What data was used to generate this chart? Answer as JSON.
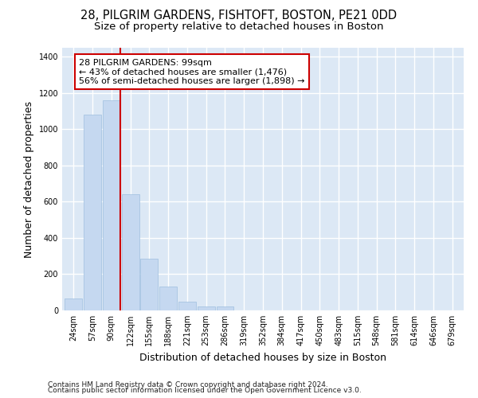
{
  "title_line1": "28, PILGRIM GARDENS, FISHTOFT, BOSTON, PE21 0DD",
  "title_line2": "Size of property relative to detached houses in Boston",
  "xlabel": "Distribution of detached houses by size in Boston",
  "ylabel": "Number of detached properties",
  "bar_categories": [
    "24sqm",
    "57sqm",
    "90sqm",
    "122sqm",
    "155sqm",
    "188sqm",
    "221sqm",
    "253sqm",
    "286sqm",
    "319sqm",
    "352sqm",
    "384sqm",
    "417sqm",
    "450sqm",
    "483sqm",
    "515sqm",
    "548sqm",
    "581sqm",
    "614sqm",
    "646sqm",
    "679sqm"
  ],
  "bar_heights": [
    65,
    1080,
    1160,
    640,
    285,
    130,
    47,
    20,
    20,
    0,
    0,
    0,
    0,
    0,
    0,
    0,
    0,
    0,
    0,
    0,
    0
  ],
  "bar_color": "#c5d8f0",
  "bar_edge_color": "#9fbfdf",
  "vline_color": "#cc0000",
  "annotation_text": "28 PILGRIM GARDENS: 99sqm\n← 43% of detached houses are smaller (1,476)\n56% of semi-detached houses are larger (1,898) →",
  "annotation_box_color": "#ffffff",
  "annotation_box_edge": "#cc0000",
  "ylim": [
    0,
    1450
  ],
  "yticks": [
    0,
    200,
    400,
    600,
    800,
    1000,
    1200,
    1400
  ],
  "plot_bg_color": "#dce8f5",
  "fig_bg_color": "#ffffff",
  "grid_color": "#ffffff",
  "footer_line1": "Contains HM Land Registry data © Crown copyright and database right 2024.",
  "footer_line2": "Contains public sector information licensed under the Open Government Licence v3.0.",
  "title_fontsize": 10.5,
  "subtitle_fontsize": 9.5,
  "label_fontsize": 9,
  "tick_fontsize": 7,
  "annotation_fontsize": 8,
  "footer_fontsize": 6.5
}
